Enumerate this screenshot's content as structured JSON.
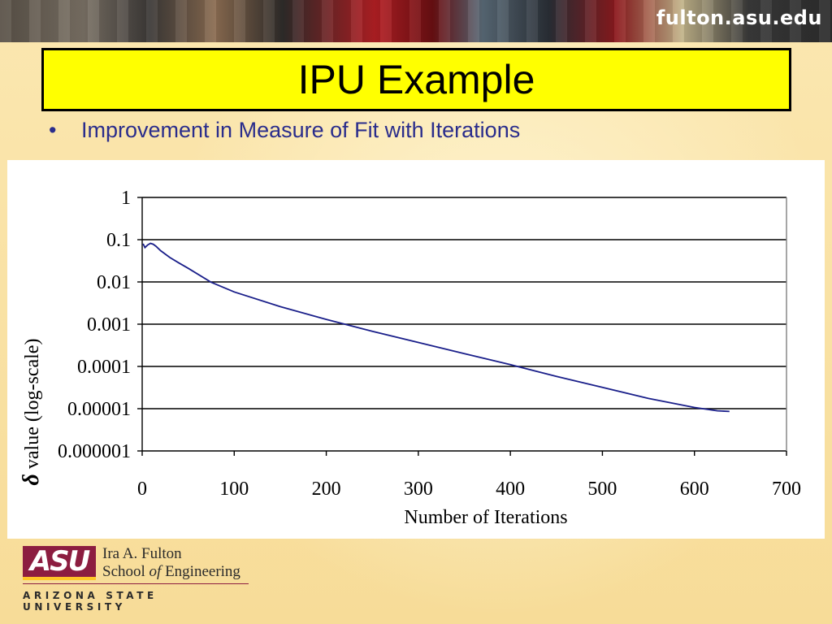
{
  "banner": {
    "site": "fulton.asu.edu"
  },
  "slide": {
    "title": "IPU Example",
    "bullet": "Improvement in Measure of Fit with Iterations"
  },
  "chart_data": {
    "type": "line",
    "xlabel": "Number of Iterations",
    "ylabel_symbol": "δ",
    "ylabel": " value (log-scale)",
    "xlim": [
      0,
      700
    ],
    "ylim": [
      1e-06,
      1
    ],
    "yscale": "log",
    "x_ticks": [
      0,
      100,
      200,
      300,
      400,
      500,
      600,
      700
    ],
    "y_ticks": [
      "1",
      "0.1",
      "0.01",
      "0.001",
      "0.0001",
      "0.00001",
      "0.000001"
    ],
    "grid": "horizontal",
    "line_color": "#1a1f8a",
    "series": [
      {
        "x": [
          1,
          3,
          6,
          9,
          12,
          15,
          20,
          30,
          40,
          50,
          75,
          100,
          150,
          200,
          250,
          300,
          350,
          400,
          450,
          500,
          550,
          600,
          625,
          638
        ],
        "values": [
          0.08,
          0.065,
          0.075,
          0.082,
          0.078,
          0.07,
          0.055,
          0.038,
          0.028,
          0.021,
          0.0098,
          0.0058,
          0.0026,
          0.0013,
          0.00068,
          0.00037,
          0.0002,
          0.00011,
          5.8e-05,
          3.2e-05,
          1.75e-05,
          1.07e-05,
          8.9e-06,
          8.6e-06
        ]
      }
    ]
  },
  "logo": {
    "mark": "ASU",
    "line1": "Ira A. Fulton",
    "line2_a": "School ",
    "line2_b": "of",
    "line2_c": " Engineering",
    "university": "ARIZONA STATE UNIVERSITY"
  }
}
